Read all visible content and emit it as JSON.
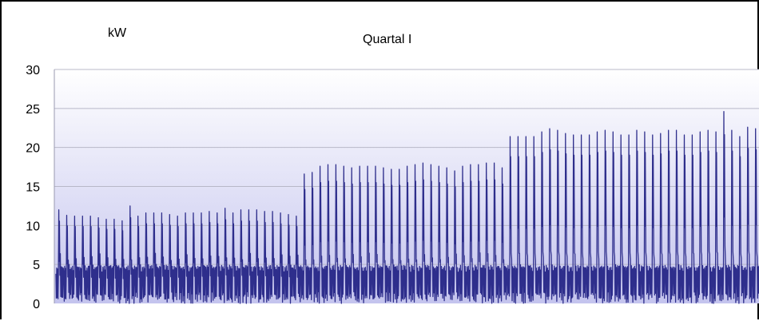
{
  "chart_data": {
    "type": "line",
    "title": "Quartal I",
    "ylabel": "kW",
    "xlabel": "",
    "ylim": [
      0,
      30
    ],
    "yticks": [
      0,
      5,
      10,
      15,
      20,
      25,
      30
    ],
    "grid": true,
    "legend": "none",
    "colors": {
      "line": "#2E2E8C",
      "grid": "#B8B8C8",
      "plot_top": "#FFFFFF",
      "plot_bottom": "#C4C4EE"
    },
    "series": [
      {
        "name": "",
        "cycle_count": 89,
        "baseline_kw": 4.5,
        "trough_kw": 0,
        "daily_peaks_kw": [
          12,
          11.3,
          11.2,
          11.2,
          11.2,
          11,
          10.8,
          10.8,
          10.6,
          12.5,
          11.2,
          11.6,
          11.6,
          11.6,
          11.4,
          11.2,
          11.6,
          11.6,
          11.6,
          11.8,
          11.6,
          12.2,
          11.6,
          12,
          12,
          12,
          11.8,
          11.8,
          11.6,
          11.4,
          11.2,
          16.6,
          16.8,
          17.6,
          17.8,
          17.8,
          17.6,
          17.4,
          17.6,
          17.6,
          17.6,
          17.4,
          17.2,
          17.2,
          17.6,
          17.8,
          18,
          17.8,
          17.6,
          17.4,
          17,
          17.6,
          17.8,
          17.8,
          18,
          18,
          17.4,
          21.4,
          21.4,
          21.4,
          21.4,
          22,
          22.4,
          22.2,
          21.8,
          21.6,
          21.6,
          21.6,
          22,
          22.2,
          22,
          21.6,
          21.6,
          22.2,
          22,
          21.6,
          21.8,
          22.2,
          22.2,
          21.6,
          21.6,
          22,
          22.2,
          22,
          24.6,
          22.2,
          21.4,
          22.6,
          22.4
        ]
      }
    ]
  }
}
